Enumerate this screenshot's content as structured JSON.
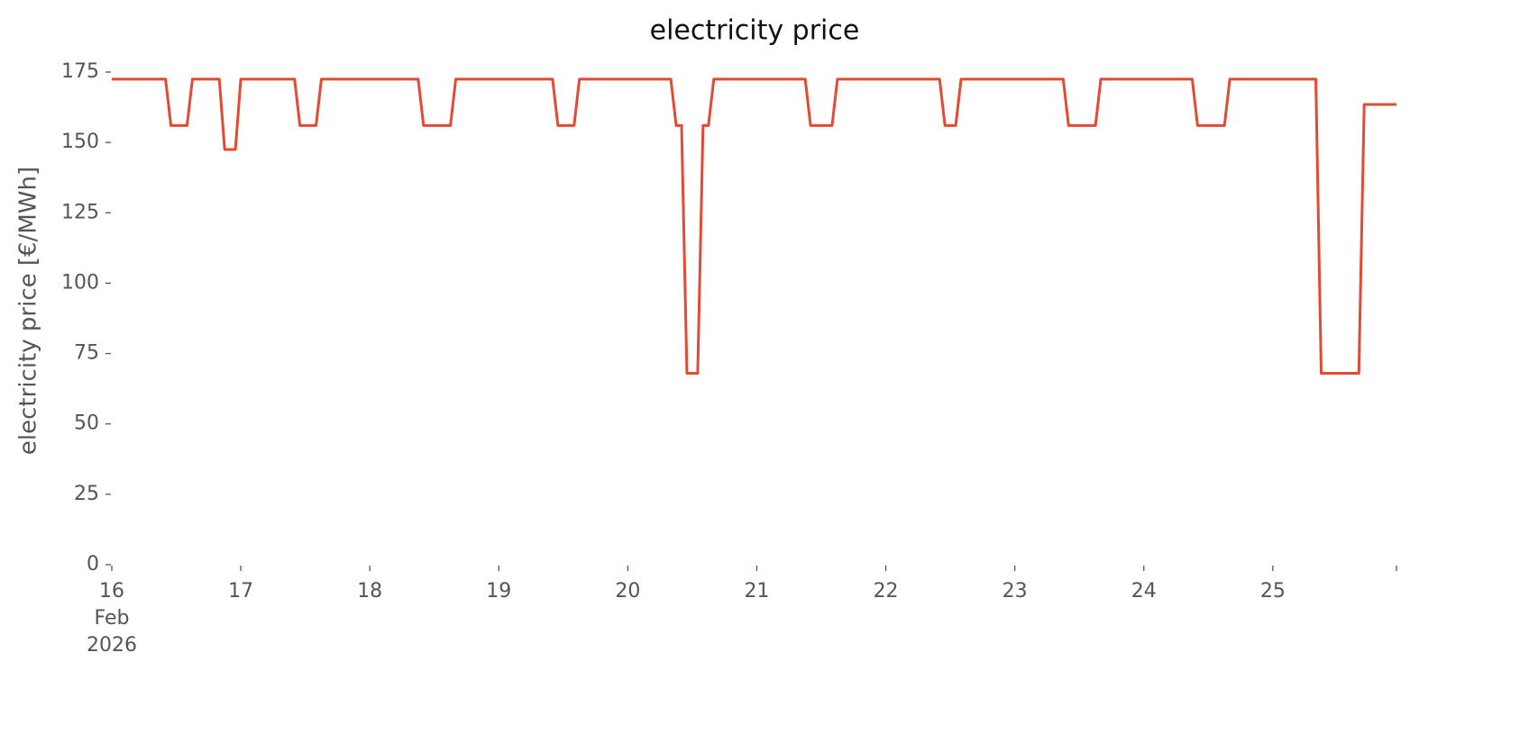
{
  "chart_data": {
    "type": "line",
    "title": "electricity price",
    "ylabel": "electricity price [€/MWh]",
    "x": [
      0,
      10,
      11,
      14,
      15,
      20,
      21,
      23,
      24,
      34,
      35,
      38,
      39,
      57,
      58,
      63,
      64,
      82,
      83,
      86,
      87,
      104,
      105,
      106,
      107,
      109,
      110,
      111,
      112,
      129,
      130,
      134,
      135,
      154,
      155,
      157,
      158,
      177,
      178,
      183,
      184,
      201,
      202,
      207,
      208,
      224,
      225,
      232,
      233,
      239
    ],
    "series": [
      {
        "color": "#E24A33",
        "values": [
          172.5,
          172.5,
          156,
          156,
          172.5,
          172.5,
          147.5,
          147.5,
          172.5,
          172.5,
          156,
          156,
          172.5,
          172.5,
          156,
          156,
          172.5,
          172.5,
          156,
          156,
          172.5,
          172.5,
          156,
          156,
          68,
          68,
          156,
          156,
          172.5,
          172.5,
          156,
          156,
          172.5,
          172.5,
          156,
          156,
          172.5,
          172.5,
          156,
          156,
          172.5,
          172.5,
          156,
          156,
          172.5,
          172.5,
          68,
          68,
          163.5,
          163.5
        ]
      }
    ],
    "xlim": [
      0,
      239
    ],
    "xticks": [
      {
        "value": 0,
        "label": [
          "16",
          "Feb",
          "2026"
        ]
      },
      {
        "value": 24,
        "label": "17"
      },
      {
        "value": 48,
        "label": "18"
      },
      {
        "value": 72,
        "label": "19"
      },
      {
        "value": 96,
        "label": "20"
      },
      {
        "value": 120,
        "label": "21"
      },
      {
        "value": 144,
        "label": "22"
      },
      {
        "value": 168,
        "label": "23"
      },
      {
        "value": 192,
        "label": "24"
      },
      {
        "value": 216,
        "label": "25"
      },
      {
        "value": 239,
        "label": null
      }
    ],
    "ylim": [
      0,
      175
    ],
    "yticks": [
      0,
      25,
      50,
      75,
      100,
      125,
      150,
      175
    ],
    "grid": false
  }
}
